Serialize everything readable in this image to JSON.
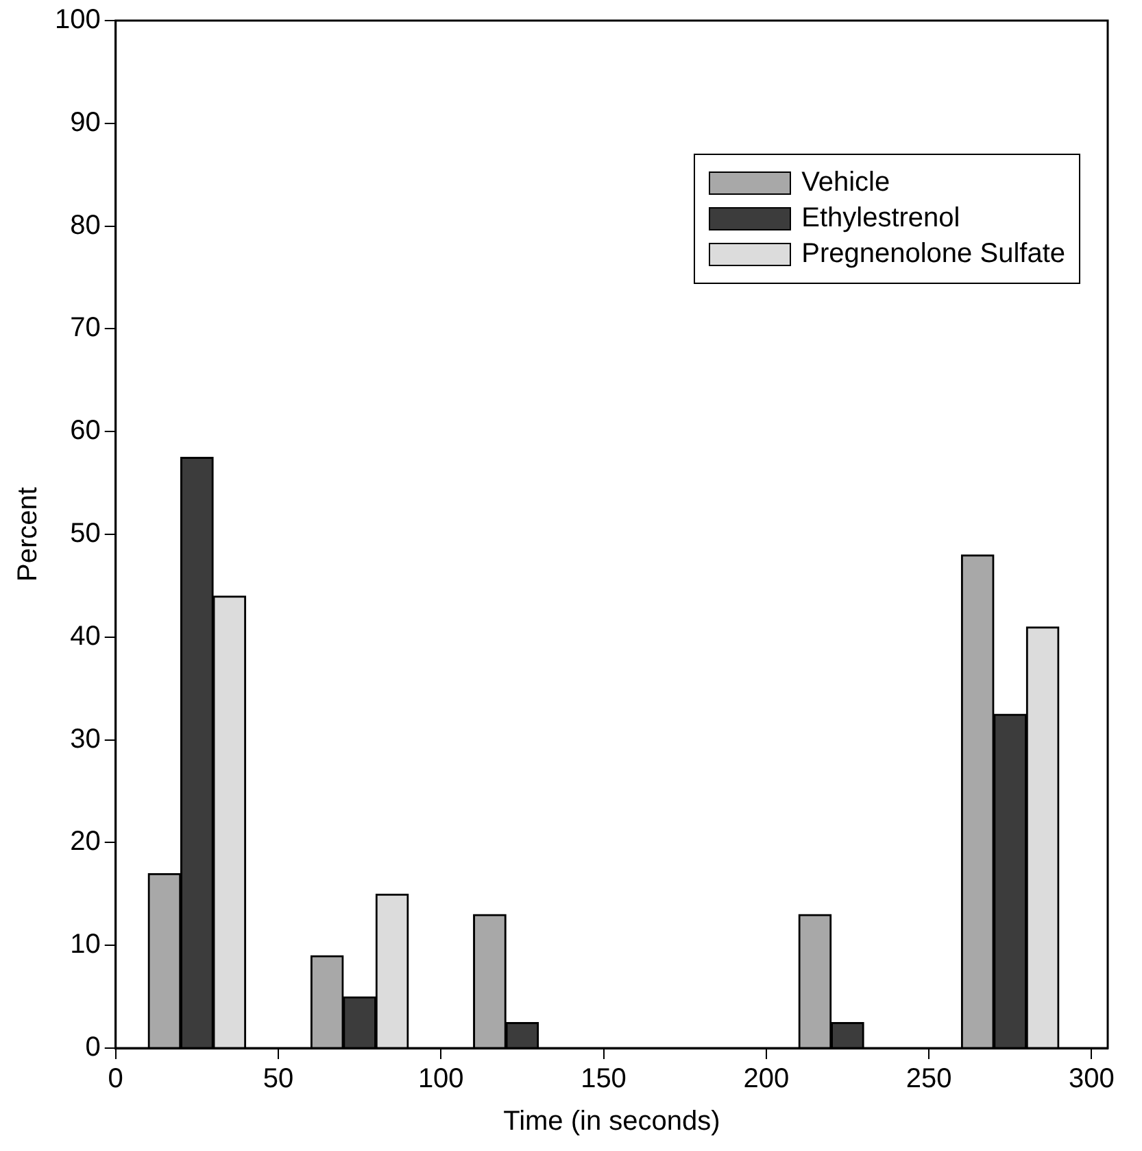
{
  "chart_data": {
    "type": "bar",
    "xlabel": "Time (in seconds)",
    "ylabel": "Percent",
    "series": [
      {
        "name": "Vehicle",
        "color": "#a8a8a8",
        "x": [
          15,
          65,
          115,
          165,
          215,
          265
        ],
        "values": [
          17,
          9,
          13,
          0,
          13,
          48
        ]
      },
      {
        "name": "Ethylestrenol",
        "color": "#3c3c3c",
        "x": [
          25,
          75,
          125,
          175,
          225,
          275
        ],
        "values": [
          57.5,
          5,
          2.5,
          0,
          2.5,
          32.5
        ]
      },
      {
        "name": "Pregnenolone Sulfate",
        "color": "#dcdcdc",
        "x": [
          35,
          85,
          135,
          185,
          235,
          285
        ],
        "values": [
          44,
          15,
          0,
          0,
          0,
          41
        ]
      }
    ],
    "xlim": [
      0,
      305
    ],
    "xticks": [
      0,
      50,
      100,
      150,
      200,
      250,
      300
    ],
    "ylim": [
      0,
      100
    ],
    "yticks": [
      0,
      10,
      20,
      30,
      40,
      50,
      60,
      70,
      80,
      90,
      100
    ],
    "grid": false,
    "legend": "top right"
  }
}
